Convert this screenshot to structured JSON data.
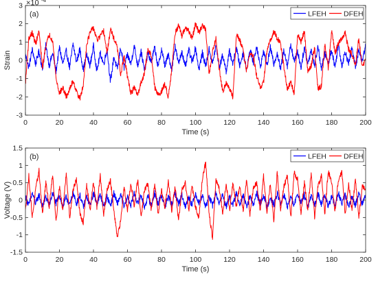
{
  "chart_data": [
    {
      "type": "line",
      "panel_label": "(a)",
      "title": "",
      "xlabel": "Time (s)",
      "ylabel": "Strain",
      "xlim": [
        0,
        200
      ],
      "ylim": [
        -3,
        3
      ],
      "x_ticks": [
        0,
        20,
        40,
        60,
        80,
        100,
        120,
        140,
        160,
        180,
        200
      ],
      "y_ticks": [
        -3,
        -2,
        -1,
        0,
        1,
        2,
        3
      ],
      "y_exponent": {
        "base": "×10",
        "power": "-4"
      },
      "grid": false,
      "legend": "top-right",
      "series": [
        {
          "name": "LFEH",
          "color": "#0000ff",
          "x": [
            0,
            2,
            4,
            6,
            8,
            10,
            12,
            14,
            16,
            18,
            20,
            22,
            24,
            26,
            28,
            30,
            32,
            34,
            36,
            38,
            40,
            42,
            44,
            46,
            48,
            50,
            52,
            54,
            56,
            58,
            60,
            62,
            64,
            66,
            68,
            70,
            72,
            74,
            76,
            78,
            80,
            82,
            84,
            86,
            88,
            90,
            92,
            94,
            96,
            98,
            100,
            102,
            104,
            106,
            108,
            110,
            112,
            114,
            116,
            118,
            120,
            122,
            124,
            126,
            128,
            130,
            132,
            134,
            136,
            138,
            140,
            142,
            144,
            146,
            148,
            150,
            152,
            154,
            156,
            158,
            160,
            162,
            164,
            166,
            168,
            170,
            172,
            174,
            176,
            178,
            180,
            182,
            184,
            186,
            188,
            190,
            192,
            194,
            196,
            198,
            200
          ],
          "values": [
            0.3,
            -0.4,
            0.6,
            -0.2,
            0.5,
            -0.5,
            0.8,
            -0.3,
            0.4,
            -0.6,
            0.7,
            -0.2,
            0.5,
            -0.4,
            0.9,
            -0.1,
            0.6,
            -0.5,
            0.3,
            -0.3,
            0.8,
            -0.6,
            0.4,
            -0.2,
            0.6,
            -1.2,
            0.2,
            -0.5,
            0.7,
            -0.4,
            0.3,
            -0.2,
            0.8,
            -0.3,
            0.5,
            -0.6,
            0.4,
            -0.1,
            0.7,
            -0.4,
            0.6,
            -0.3,
            0.3,
            -0.5,
            0.8,
            -0.2,
            0.5,
            -0.4,
            0.6,
            -0.1,
            0.7,
            -0.5,
            0.4,
            -0.3,
            0.6,
            -0.2,
            0.8,
            -0.4,
            0.3,
            -0.6,
            0.5,
            -0.2,
            0.7,
            -0.3,
            0.4,
            -0.5,
            0.6,
            -0.1,
            0.8,
            -0.4,
            0.5,
            -0.3,
            0.7,
            -0.2,
            0.4,
            -0.5,
            0.6,
            -0.3,
            0.9,
            -0.1,
            0.5,
            -0.4,
            0.7,
            -0.2,
            0.6,
            -0.3,
            0.8,
            -0.5,
            0.4,
            -0.2,
            0.6,
            -0.4,
            0.9,
            -0.3,
            0.5,
            -0.2,
            0.7,
            -0.4,
            0.6,
            -0.1,
            0.9
          ]
        },
        {
          "name": "DFEH",
          "color": "#ff0000",
          "x": [
            0,
            2,
            4,
            6,
            8,
            10,
            12,
            14,
            16,
            18,
            20,
            22,
            24,
            26,
            28,
            30,
            32,
            34,
            36,
            38,
            40,
            42,
            44,
            46,
            48,
            50,
            52,
            54,
            56,
            58,
            60,
            62,
            64,
            66,
            68,
            70,
            72,
            74,
            76,
            78,
            80,
            82,
            84,
            86,
            88,
            90,
            92,
            94,
            96,
            98,
            100,
            102,
            104,
            106,
            108,
            110,
            112,
            114,
            116,
            118,
            120,
            122,
            124,
            126,
            128,
            130,
            132,
            134,
            136,
            138,
            140,
            142,
            144,
            146,
            148,
            150,
            152,
            154,
            156,
            158,
            160,
            162,
            164,
            166,
            168,
            170,
            172,
            174,
            176,
            178,
            180,
            182,
            184,
            186,
            188,
            190,
            192,
            194,
            196,
            198,
            200
          ],
          "values": [
            -1.3,
            1.2,
            1.5,
            0.9,
            1.6,
            -0.4,
            0.8,
            1.4,
            1.1,
            -1.0,
            -1.8,
            -1.5,
            -2.0,
            -1.6,
            -1.1,
            -1.7,
            -2.1,
            -1.4,
            0.9,
            1.5,
            1.8,
            1.1,
            1.3,
            1.6,
            0.4,
            1.7,
            1.2,
            0.7,
            -0.8,
            0.2,
            -0.9,
            -1.8,
            -1.5,
            -1.9,
            -1.2,
            -0.7,
            0.6,
            0.3,
            -1.5,
            -1.9,
            -1.7,
            -1.3,
            -2.0,
            -0.5,
            1.5,
            1.9,
            1.3,
            1.8,
            1.6,
            1.2,
            2.0,
            1.5,
            1.9,
            1.7,
            -0.8,
            0.5,
            1.2,
            -0.5,
            -1.7,
            -1.2,
            -1.6,
            -2.0,
            1.4,
            1.1,
            0.6,
            -0.6,
            0.4,
            0.2,
            -0.9,
            -1.5,
            -1.2,
            0.5,
            1.1,
            1.6,
            1.2,
            0.9,
            -0.4,
            -1.6,
            -1.2,
            -1.8,
            1.4,
            1.0,
            1.6,
            -0.6,
            -0.3,
            0.7,
            -1.6,
            -1.4,
            0.9,
            -0.4,
            1.6,
            0.4,
            0.9,
            1.2,
            1.5,
            0.6,
            0.3,
            -0.3,
            1.2,
            -0.4,
            0.1
          ]
        }
      ]
    },
    {
      "type": "line",
      "panel_label": "(b)",
      "title": "",
      "xlabel": "Time (s)",
      "ylabel": "Voltage (V)",
      "xlim": [
        0,
        200
      ],
      "ylim": [
        -1.5,
        1.5
      ],
      "x_ticks": [
        0,
        20,
        40,
        60,
        80,
        100,
        120,
        140,
        160,
        180,
        200
      ],
      "y_ticks": [
        -1.5,
        -1,
        -0.5,
        0,
        0.5,
        1,
        1.5
      ],
      "grid": false,
      "legend": "top-right",
      "series": [
        {
          "name": "LFEH",
          "color": "#0000ff",
          "x": [
            0,
            2,
            4,
            6,
            8,
            10,
            12,
            14,
            16,
            18,
            20,
            22,
            24,
            26,
            28,
            30,
            32,
            34,
            36,
            38,
            40,
            42,
            44,
            46,
            48,
            50,
            52,
            54,
            56,
            58,
            60,
            62,
            64,
            66,
            68,
            70,
            72,
            74,
            76,
            78,
            80,
            82,
            84,
            86,
            88,
            90,
            92,
            94,
            96,
            98,
            100,
            102,
            104,
            106,
            108,
            110,
            112,
            114,
            116,
            118,
            120,
            122,
            124,
            126,
            128,
            130,
            132,
            134,
            136,
            138,
            140,
            142,
            144,
            146,
            148,
            150,
            152,
            154,
            156,
            158,
            160,
            162,
            164,
            166,
            168,
            170,
            172,
            174,
            176,
            178,
            180,
            182,
            184,
            186,
            188,
            190,
            192,
            194,
            196,
            198,
            200
          ],
          "values": [
            0.1,
            -0.15,
            0.2,
            -0.1,
            0.15,
            -0.2,
            0.1,
            -0.15,
            0.2,
            -0.1,
            0.15,
            -0.2,
            0.1,
            -0.15,
            0.2,
            -0.1,
            0.15,
            -0.2,
            0.1,
            -0.15,
            0.2,
            -0.1,
            0.15,
            -0.2,
            0.1,
            -0.15,
            0.2,
            -0.1,
            0.15,
            -0.2,
            0.1,
            -0.15,
            0.2,
            -0.1,
            0.15,
            -0.2,
            0.1,
            -0.15,
            0.2,
            -0.1,
            0.15,
            -0.2,
            0.1,
            -0.15,
            0.2,
            -0.1,
            0.15,
            -0.2,
            0.1,
            -0.15,
            0.2,
            -0.1,
            0.15,
            -0.2,
            0.1,
            -0.15,
            0.2,
            -0.1,
            0.15,
            -0.2,
            0.1,
            -0.15,
            0.2,
            -0.1,
            0.15,
            -0.2,
            0.1,
            -0.15,
            0.2,
            -0.1,
            0.15,
            -0.2,
            0.1,
            -0.15,
            0.2,
            -0.1,
            0.15,
            -0.2,
            0.1,
            -0.15,
            0.2,
            -0.1,
            0.15,
            -0.2,
            0.1,
            -0.15,
            0.2,
            -0.1,
            0.15,
            -0.2,
            0.1,
            -0.15,
            0.2,
            -0.1,
            0.15,
            -0.2,
            0.1,
            -0.15,
            0.2,
            -0.1,
            0.15
          ]
        },
        {
          "name": "DFEH",
          "color": "#ff0000",
          "x": [
            0,
            2,
            4,
            6,
            8,
            10,
            12,
            14,
            16,
            18,
            20,
            22,
            24,
            26,
            28,
            30,
            32,
            34,
            36,
            38,
            40,
            42,
            44,
            46,
            48,
            50,
            52,
            54,
            56,
            58,
            60,
            62,
            64,
            66,
            68,
            70,
            72,
            74,
            76,
            78,
            80,
            82,
            84,
            86,
            88,
            90,
            92,
            94,
            96,
            98,
            100,
            102,
            104,
            106,
            108,
            110,
            112,
            114,
            116,
            118,
            120,
            122,
            124,
            126,
            128,
            130,
            132,
            134,
            136,
            138,
            140,
            142,
            144,
            146,
            148,
            150,
            152,
            154,
            156,
            158,
            160,
            162,
            164,
            166,
            168,
            170,
            172,
            174,
            176,
            178,
            180,
            182,
            184,
            186,
            188,
            190,
            192,
            194,
            196,
            198,
            200
          ],
          "values": [
            -0.3,
            0.7,
            -0.5,
            0.3,
            0.85,
            -0.4,
            0.5,
            -0.2,
            0.75,
            -0.6,
            0.4,
            -0.3,
            0.8,
            -0.5,
            0.3,
            0.6,
            -0.4,
            -0.65,
            0.45,
            -0.3,
            0.5,
            -0.2,
            0.7,
            -0.4,
            0.3,
            0.55,
            -0.3,
            -1.1,
            -0.6,
            0.4,
            -0.3,
            0.5,
            -0.2,
            0.6,
            -0.5,
            0.3,
            0.45,
            -0.3,
            0.5,
            -0.4,
            0.3,
            -0.2,
            0.55,
            -0.3,
            0.4,
            -0.6,
            0.3,
            0.5,
            -0.3,
            0.4,
            -0.2,
            -0.5,
            0.6,
            1.1,
            -0.4,
            -1.1,
            0.6,
            0.3,
            -0.4,
            0.5,
            -0.3,
            0.5,
            -0.2,
            0.4,
            -0.3,
            0.6,
            -0.4,
            0.35,
            0.5,
            -0.3,
            0.7,
            -0.4,
            0.5,
            -0.6,
            0.8,
            -0.3,
            0.4,
            0.7,
            -0.5,
            0.8,
            0.6,
            -0.4,
            0.5,
            -0.3,
            0.8,
            -0.5,
            0.4,
            0.7,
            -0.4,
            0.85,
            0.5,
            -0.3,
            0.6,
            0.8,
            -0.4,
            0.5,
            -0.3,
            0.6,
            -0.5,
            0.4,
            0.3
          ]
        }
      ]
    }
  ]
}
